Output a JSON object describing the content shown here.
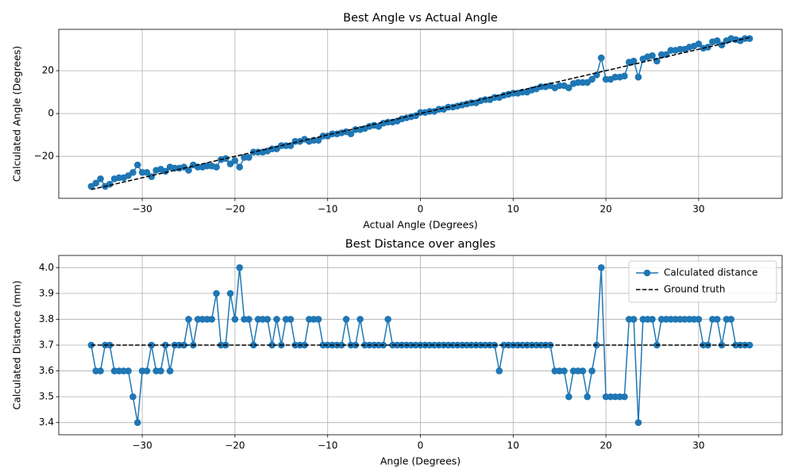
{
  "chart_data": [
    {
      "type": "line",
      "title": "Best Angle vs Actual Angle",
      "x_label": "Actual Angle (Degrees)",
      "y_label": "Calculated Angle (Degrees)",
      "xlim": [
        -39,
        39
      ],
      "ylim": [
        -39.6,
        39.3
      ],
      "xticks": [
        {
          "value": -30,
          "label": "−30"
        },
        {
          "value": -20,
          "label": "−20"
        },
        {
          "value": -10,
          "label": "−10"
        },
        0,
        10,
        20,
        30
      ],
      "yticks": [
        {
          "value": -20,
          "label": "−20"
        },
        0,
        20
      ],
      "grid": true,
      "series": [
        {
          "color": "#1f77b4",
          "marker": true,
          "linestyle": "solid",
          "x": [
            -35.5,
            -35,
            -34.5,
            -34,
            -33.5,
            -33,
            -32.5,
            -32,
            -31.5,
            -31,
            -30.5,
            -30,
            -29.5,
            -29,
            -28.5,
            -28,
            -27.5,
            -27,
            -26.5,
            -26,
            -25.5,
            -25,
            -24.5,
            -24,
            -23.5,
            -23,
            -22.5,
            -22,
            -21.5,
            -21,
            -20.5,
            -20,
            -19.5,
            -19,
            -18.5,
            -18,
            -17.5,
            -17,
            -16.5,
            -16,
            -15.5,
            -15,
            -14.5,
            -14,
            -13.5,
            -13,
            -12.5,
            -12,
            -11.5,
            -11,
            -10.5,
            -10,
            -9.5,
            -9,
            -8.5,
            -8,
            -7.5,
            -7,
            -6.5,
            -6,
            -5.5,
            -5,
            -4.5,
            -4,
            -3.5,
            -3,
            -2.5,
            -2,
            -1.5,
            -1,
            -0.5,
            0,
            0.5,
            1,
            1.5,
            2,
            2.5,
            3,
            3.5,
            4,
            4.5,
            5,
            5.5,
            6,
            6.5,
            7,
            7.5,
            8,
            8.5,
            9,
            9.5,
            10,
            10.5,
            11,
            11.5,
            12,
            12.5,
            13,
            13.5,
            14,
            14.5,
            15,
            15.5,
            16,
            16.5,
            17,
            17.5,
            18,
            18.5,
            19,
            19.5,
            20,
            20.5,
            21,
            21.5,
            22,
            22.5,
            23,
            23.5,
            24,
            24.5,
            25,
            25.5,
            26,
            26.5,
            27,
            27.5,
            28,
            28.5,
            29,
            29.5,
            30,
            30.5,
            31,
            31.5,
            32,
            32.5,
            33,
            33.5,
            34,
            34.5,
            35,
            35.5
          ],
          "values": [
            -34,
            -32.5,
            -30.5,
            -34,
            -33,
            -30.5,
            -30,
            -30,
            -29,
            -27.5,
            -24,
            -27.5,
            -27.5,
            -29.5,
            -26.5,
            -26,
            -27,
            -25,
            -25.5,
            -25.5,
            -25,
            -26.5,
            -24,
            -25,
            -25,
            -24.5,
            -24.5,
            -25,
            -21.5,
            -21,
            -23.5,
            -22,
            -25,
            -20.5,
            -20.5,
            -18,
            -18,
            -18,
            -17.5,
            -16.5,
            -16.5,
            -15,
            -15,
            -15,
            -13,
            -13,
            -12,
            -13,
            -12.5,
            -12.5,
            -10.5,
            -10.5,
            -9.5,
            -9.5,
            -9,
            -8.5,
            -9.5,
            -7.5,
            -7.5,
            -7,
            -6,
            -5.5,
            -6,
            -4.5,
            -4,
            -4,
            -3.5,
            -2.5,
            -2,
            -1.5,
            -1,
            0.5,
            0.5,
            1,
            1,
            2,
            2,
            3,
            3,
            3.5,
            4,
            4.5,
            5,
            5,
            6,
            6.5,
            6.5,
            7.5,
            7.5,
            8.5,
            9,
            9.5,
            9.5,
            10,
            10,
            11,
            11.5,
            12.5,
            12.5,
            13,
            12,
            13,
            13,
            12,
            14,
            14.5,
            14.5,
            14.5,
            16,
            18,
            26,
            16,
            16,
            17,
            17,
            17.5,
            24,
            24.5,
            17,
            25.5,
            26.5,
            27,
            24.5,
            27.5,
            27.5,
            29.5,
            29.5,
            30,
            30,
            31,
            31.5,
            32.5,
            30.5,
            31,
            33.5,
            34,
            32,
            34,
            35,
            34.5,
            34,
            35,
            35
          ]
        },
        {
          "color": "#000000",
          "marker": false,
          "linestyle": "dashed",
          "x": [
            -35.5,
            35.5
          ],
          "values": [
            -35.5,
            35.5
          ]
        }
      ]
    },
    {
      "type": "line",
      "title": "Best Distance over angles",
      "x_label": "Angle (Degrees)",
      "y_label": "Calculated Distance (mm)",
      "xlim": [
        -39,
        39
      ],
      "ylim": [
        3.353,
        4.047
      ],
      "xticks": [
        {
          "value": -30,
          "label": "−30"
        },
        {
          "value": -20,
          "label": "−20"
        },
        {
          "value": -10,
          "label": "−10"
        },
        0,
        10,
        20,
        30
      ],
      "yticks": [
        3.4,
        3.5,
        3.6,
        3.7,
        3.8,
        3.9,
        {
          "value": 4,
          "label": "4.0"
        }
      ],
      "grid": true,
      "legend": "upper right",
      "series": [
        {
          "name": "Calculated distance",
          "color": "#1f77b4",
          "marker": true,
          "linestyle": "solid",
          "x": [
            -35.5,
            -35,
            -34.5,
            -34,
            -33.5,
            -33,
            -32.5,
            -32,
            -31.5,
            -31,
            -30.5,
            -30,
            -29.5,
            -29,
            -28.5,
            -28,
            -27.5,
            -27,
            -26.5,
            -26,
            -25.5,
            -25,
            -24.5,
            -24,
            -23.5,
            -23,
            -22.5,
            -22,
            -21.5,
            -21,
            -20.5,
            -20,
            -19.5,
            -19,
            -18.5,
            -18,
            -17.5,
            -17,
            -16.5,
            -16,
            -15.5,
            -15,
            -14.5,
            -14,
            -13.5,
            -13,
            -12.5,
            -12,
            -11.5,
            -11,
            -10.5,
            -10,
            -9.5,
            -9,
            -8.5,
            -8,
            -7.5,
            -7,
            -6.5,
            -6,
            -5.5,
            -5,
            -4.5,
            -4,
            -3.5,
            -3,
            -2.5,
            -2,
            -1.5,
            -1,
            -0.5,
            0,
            0.5,
            1,
            1.5,
            2,
            2.5,
            3,
            3.5,
            4,
            4.5,
            5,
            5.5,
            6,
            6.5,
            7,
            7.5,
            8,
            8.5,
            9,
            9.5,
            10,
            10.5,
            11,
            11.5,
            12,
            12.5,
            13,
            13.5,
            14,
            14.5,
            15,
            15.5,
            16,
            16.5,
            17,
            17.5,
            18,
            18.5,
            19,
            19.5,
            20,
            20.5,
            21,
            21.5,
            22,
            22.5,
            23,
            23.5,
            24,
            24.5,
            25,
            25.5,
            26,
            26.5,
            27,
            27.5,
            28,
            28.5,
            29,
            29.5,
            30,
            30.5,
            31,
            31.5,
            32,
            32.5,
            33,
            33.5,
            34,
            34.5,
            35,
            35.5
          ],
          "values": [
            3.7,
            3.6,
            3.6,
            3.7,
            3.7,
            3.6,
            3.6,
            3.6,
            3.6,
            3.5,
            3.4,
            3.6,
            3.6,
            3.7,
            3.6,
            3.6,
            3.7,
            3.6,
            3.7,
            3.7,
            3.7,
            3.8,
            3.7,
            3.8,
            3.8,
            3.8,
            3.8,
            3.9,
            3.7,
            3.7,
            3.9,
            3.8,
            4.0,
            3.8,
            3.8,
            3.7,
            3.8,
            3.8,
            3.8,
            3.7,
            3.8,
            3.7,
            3.8,
            3.8,
            3.7,
            3.7,
            3.7,
            3.8,
            3.8,
            3.8,
            3.7,
            3.7,
            3.7,
            3.7,
            3.7,
            3.8,
            3.7,
            3.7,
            3.8,
            3.7,
            3.7,
            3.7,
            3.7,
            3.7,
            3.8,
            3.7,
            3.7,
            3.7,
            3.7,
            3.7,
            3.7,
            3.7,
            3.7,
            3.7,
            3.7,
            3.7,
            3.7,
            3.7,
            3.7,
            3.7,
            3.7,
            3.7,
            3.7,
            3.7,
            3.7,
            3.7,
            3.7,
            3.7,
            3.6,
            3.7,
            3.7,
            3.7,
            3.7,
            3.7,
            3.7,
            3.7,
            3.7,
            3.7,
            3.7,
            3.7,
            3.6,
            3.6,
            3.6,
            3.5,
            3.6,
            3.6,
            3.6,
            3.5,
            3.6,
            3.7,
            4.0,
            3.5,
            3.5,
            3.5,
            3.5,
            3.5,
            3.8,
            3.8,
            3.4,
            3.8,
            3.8,
            3.8,
            3.7,
            3.8,
            3.8,
            3.8,
            3.8,
            3.8,
            3.8,
            3.8,
            3.8,
            3.8,
            3.7,
            3.7,
            3.8,
            3.8,
            3.7,
            3.8,
            3.8,
            3.7,
            3.7,
            3.7,
            3.7
          ]
        },
        {
          "name": "Ground truth",
          "color": "#000000",
          "marker": false,
          "linestyle": "dashed",
          "x": [
            -35.5,
            35.5
          ],
          "values": [
            3.7,
            3.7
          ]
        }
      ]
    }
  ]
}
